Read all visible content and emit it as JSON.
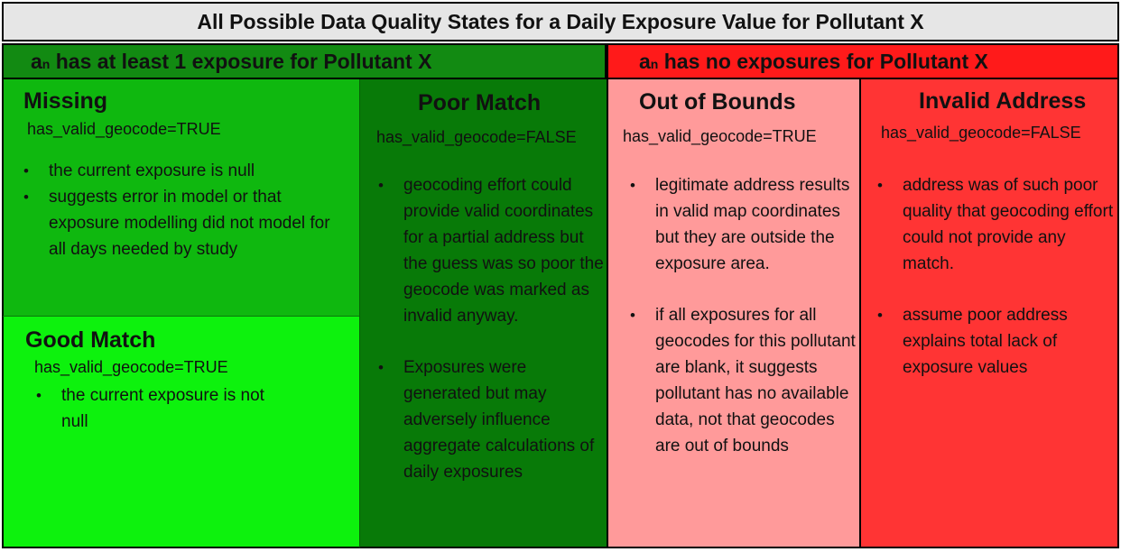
{
  "title": "All Possible Data Quality States for a Daily Exposure Value for Pollutant X",
  "groups": {
    "left": {
      "prefix": "a",
      "subscript": "n",
      "text": " has at least 1 exposure for Pollutant X",
      "color": "#128a12"
    },
    "right": {
      "prefix": "a",
      "subscript": "n",
      "text": " has no exposures for Pollutant X",
      "color": "#ff1a1a"
    }
  },
  "states": {
    "missing": {
      "title": "Missing",
      "geocode": "has_valid_geocode=TRUE",
      "bullets": [
        "the current exposure is null",
        "suggests error in model or that exposure modelling did not model for all days needed by study"
      ],
      "color": "#0fb80f"
    },
    "good_match": {
      "title": "Good Match",
      "geocode": "has_valid_geocode=TRUE",
      "bullets": [
        "the current exposure is not null"
      ],
      "color": "#0df20d"
    },
    "poor_match": {
      "title": "Poor Match",
      "geocode": "has_valid_geocode=FALSE",
      "bullets": [
        "geocoding effort could provide valid coordinates for a partial address but the guess was so poor the geocode was marked as invalid anyway.",
        "Exposures were generated but may adversely influence aggregate calculations of daily exposures"
      ],
      "color": "#087a08"
    },
    "out_of_bounds": {
      "title": "Out of Bounds",
      "geocode": "has_valid_geocode=TRUE",
      "bullets": [
        "legitimate address results in valid map coordinates but they are outside the exposure area.",
        "if all exposures for all geocodes for this pollutant are blank, it suggests pollutant has no available data, not that geocodes are out of bounds"
      ],
      "color": "#ff9a9a"
    },
    "invalid_address": {
      "title": "Invalid Address",
      "geocode": "has_valid_geocode=FALSE",
      "bullets": [
        "address was of such poor quality that geocoding effort could not provide any match.",
        "assume poor address explains total lack of exposure values"
      ],
      "color": "#ff3434"
    }
  }
}
